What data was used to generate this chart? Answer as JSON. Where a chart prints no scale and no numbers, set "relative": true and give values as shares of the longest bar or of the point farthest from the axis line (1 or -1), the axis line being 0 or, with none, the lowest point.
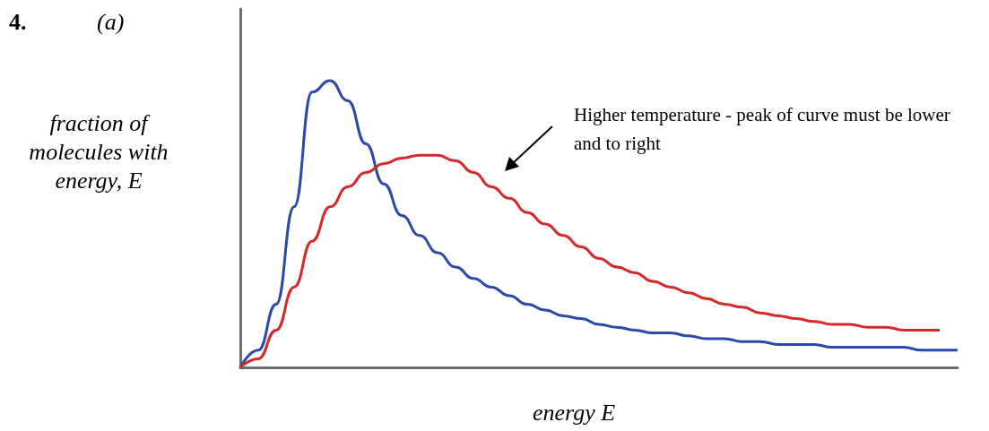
{
  "chart_data": {
    "type": "line",
    "relative": true,
    "xlabel": "energy E",
    "ylabel": "fraction of molecules with energy, E",
    "annotations": [
      "4.",
      "(a)",
      "Higher temperature - peak of curve must be lower and to right"
    ],
    "categories": [
      null,
      null,
      null,
      null,
      null,
      null,
      null,
      null,
      null,
      null,
      null,
      null,
      null,
      null,
      null,
      null,
      null,
      null,
      null,
      null,
      null,
      null,
      null,
      null,
      null,
      null,
      null,
      null,
      null,
      null,
      null,
      null,
      null,
      null,
      null,
      null,
      null,
      null,
      null,
      null,
      null
    ],
    "series": [
      {
        "color": "#2b4aa8",
        "values": [
          0,
          0.06,
          0.22,
          0.56,
          0.96,
          1,
          0.93,
          0.78,
          0.64,
          0.53,
          0.46,
          0.4,
          0.35,
          0.31,
          0.28,
          0.25,
          0.22,
          0.2,
          0.18,
          0.17,
          0.15,
          0.14,
          0.13,
          0.12,
          0.12,
          0.11,
          0.1,
          0.1,
          0.09,
          0.09,
          0.08,
          0.08,
          0.08,
          0.07,
          0.07,
          0.07,
          0.07,
          0.07,
          0.06,
          0.06,
          0.06
        ]
      },
      {
        "color": "#d42a2a",
        "values": [
          0,
          0.03,
          0.13,
          0.28,
          0.44,
          0.56,
          0.63,
          0.68,
          0.71,
          0.73,
          0.74,
          0.74,
          0.72,
          0.68,
          0.63,
          0.59,
          0.54,
          0.5,
          0.46,
          0.42,
          0.38,
          0.35,
          0.33,
          0.3,
          0.28,
          0.26,
          0.24,
          0.22,
          0.21,
          0.19,
          0.18,
          0.17,
          0.16,
          0.15,
          0.15,
          0.14,
          0.14,
          0.13,
          0.13,
          0.13,
          null
        ]
      }
    ],
    "grid": false,
    "marker": "none",
    "line_style": "solid"
  }
}
